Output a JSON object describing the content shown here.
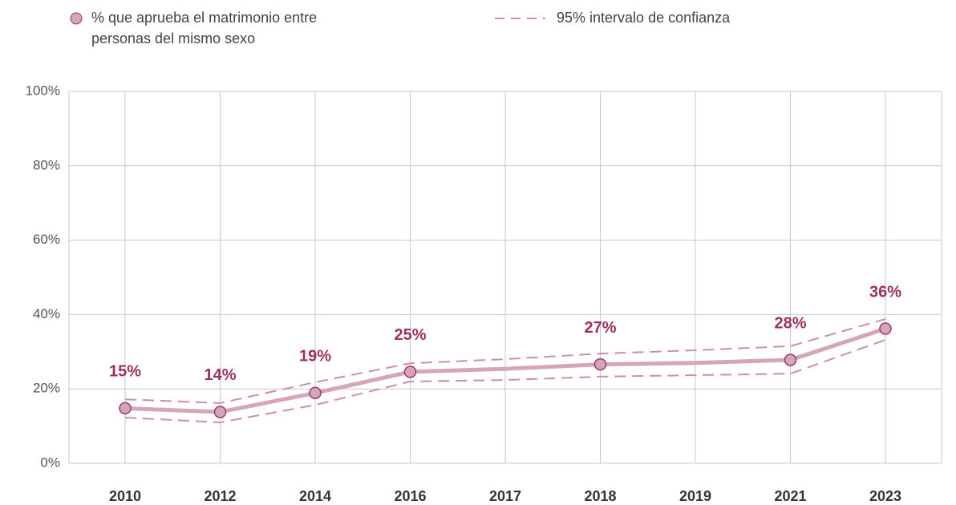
{
  "chart_data": {
    "type": "line",
    "categories": [
      "2010",
      "2012",
      "2014",
      "2016",
      "2017",
      "2018",
      "2019",
      "2021",
      "2023"
    ],
    "series": [
      {
        "name": "% que aprueba el matrimonio entre personas del mismo sexo",
        "color": "#d4a5bb",
        "marker_color": "#9e3864",
        "values": [
          14.8,
          13.8,
          18.9,
          24.6,
          25.4,
          26.6,
          27.0,
          27.8,
          36.2
        ],
        "value_labels": [
          "15%",
          "14%",
          "19%",
          "25%",
          null,
          "27%",
          null,
          "28%",
          "36%"
        ]
      }
    ],
    "confidence_interval": {
      "name": "95% intervalo de confianza",
      "color": "#c98fab",
      "upper": [
        17.2,
        16.2,
        21.8,
        26.9,
        28.0,
        29.5,
        30.4,
        31.5,
        38.8
      ],
      "lower": [
        12.3,
        11.0,
        15.7,
        22.0,
        22.4,
        23.3,
        23.7,
        24.1,
        33.2
      ]
    },
    "label_color": "#9e3060",
    "ylim": [
      0,
      100
    ],
    "yticks": [
      {
        "value": 0,
        "label": "0%"
      },
      {
        "value": 20,
        "label": "20%"
      },
      {
        "value": 40,
        "label": "40%"
      },
      {
        "value": 60,
        "label": "60%"
      },
      {
        "value": 80,
        "label": "80%"
      },
      {
        "value": 100,
        "label": "100%"
      }
    ],
    "grid": true
  }
}
